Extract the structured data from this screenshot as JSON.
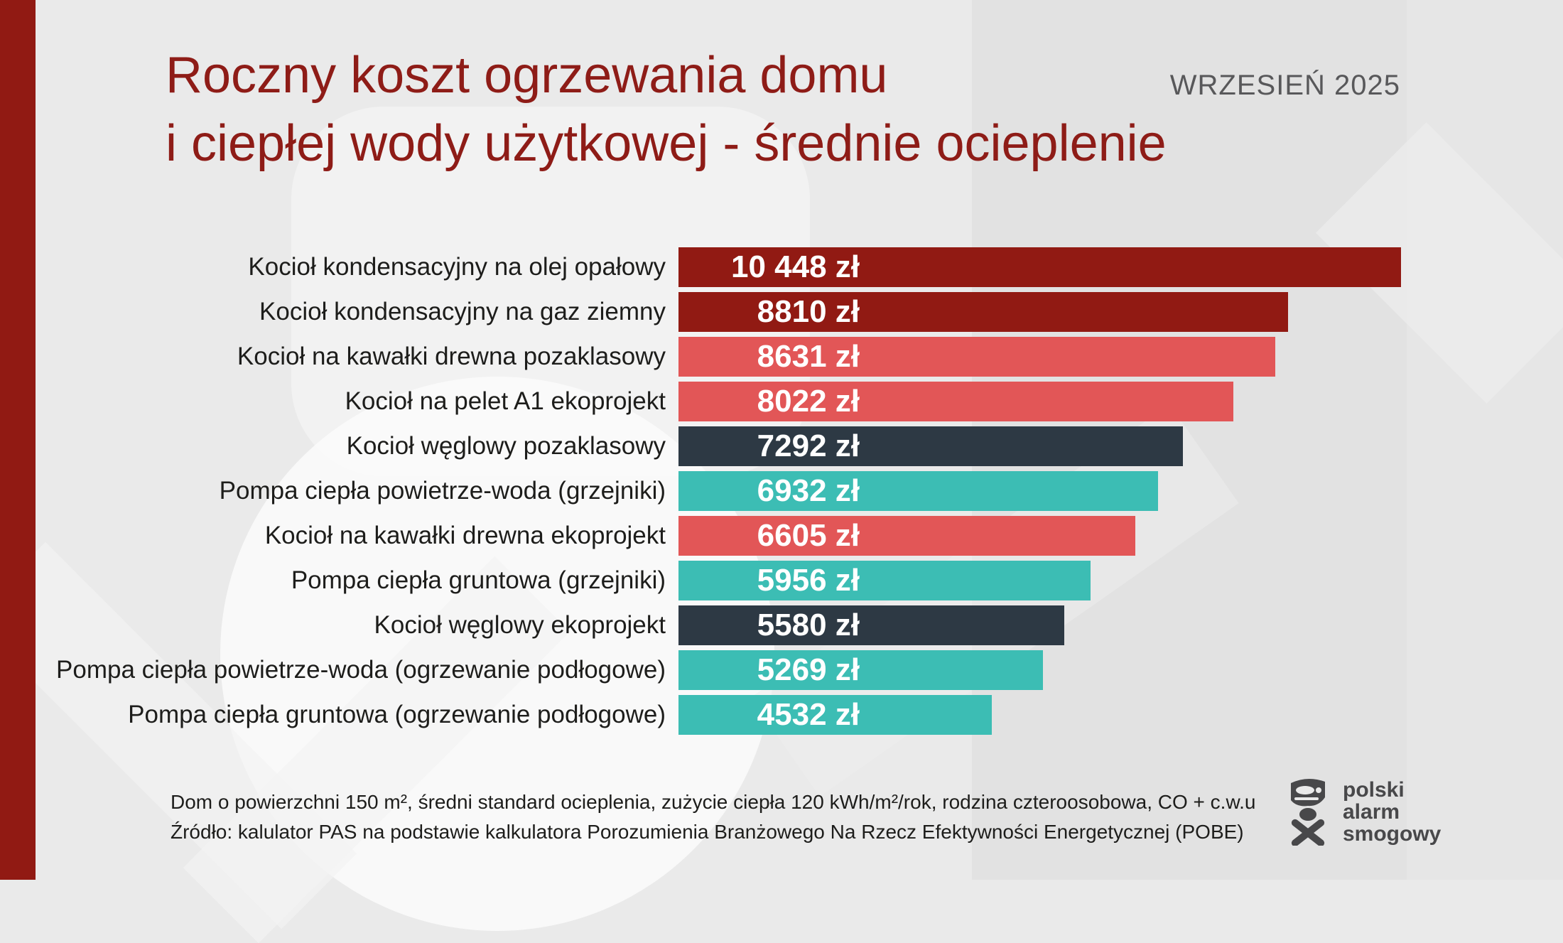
{
  "header": {
    "title_line1": "Roczny koszt ogrzewania domu",
    "title_line2": "i ciepłej wody użytkowej - średnie ocieplenie",
    "date": "WRZESIEŃ 2025"
  },
  "chart_data": {
    "type": "bar",
    "orientation": "horizontal",
    "title": "Roczny koszt ogrzewania domu i ciepłej wody użytkowej - średnie ocieplenie",
    "unit": "zł",
    "xlim": [
      0,
      10448
    ],
    "grid": false,
    "legend": false,
    "categories": [
      "Kocioł kondensacyjny na olej opałowy",
      "Kocioł kondensacyjny na gaz ziemny",
      "Kocioł na kawałki drewna pozaklasowy",
      "Kocioł na pelet A1 ekoprojekt",
      "Kocioł węglowy pozaklasowy",
      "Pompa ciepła powietrze-woda (grzejniki)",
      "Kocioł na kawałki drewna ekoprojekt",
      "Pompa ciepła gruntowa (grzejniki)",
      "Kocioł węglowy ekoprojekt",
      "Pompa ciepła powietrze-woda (ogrzewanie podłogowe)",
      "Pompa ciepła gruntowa (ogrzewanie podłogowe)"
    ],
    "values": [
      10448,
      8810,
      8631,
      8022,
      7292,
      6932,
      6605,
      5956,
      5580,
      5269,
      4532
    ],
    "value_labels": [
      "10 448 zł",
      "8810 zł",
      "8631 zł",
      "8022 zł",
      "7292 zł",
      "6932 zł",
      "6605 zł",
      "5956 zł",
      "5580 zł",
      "5269 zł",
      "4532 zł"
    ],
    "bar_colors": [
      "dark-red",
      "dark-red",
      "salmon",
      "salmon",
      "slate",
      "teal",
      "salmon",
      "teal",
      "slate",
      "teal",
      "teal"
    ],
    "color_map": {
      "dark-red": "#911a13",
      "salmon": "#e25657",
      "slate": "#2d3944",
      "teal": "#3cbdb4"
    }
  },
  "footer": {
    "line1": "Dom o powierzchni 150 m², średni standard ocieplenia, zużycie ciepła 120 kWh/m²/rok, rodzina czteroosobowa, CO + c.w.u",
    "line2": "Źródło: kalulator PAS na podstawie kalkulatora Porozumienia Branżowego Na Rzecz Efektywności Energetycznej (POBE)"
  },
  "logo": {
    "line1": "polski",
    "line2": "alarm",
    "line3": "smogowy"
  },
  "colors": {
    "accent_stripe": "#911a13",
    "title": "#8e1c17",
    "date": "#58585a",
    "text": "#1d1d1b",
    "logo": "#48484a",
    "background": "#eaeaea"
  }
}
